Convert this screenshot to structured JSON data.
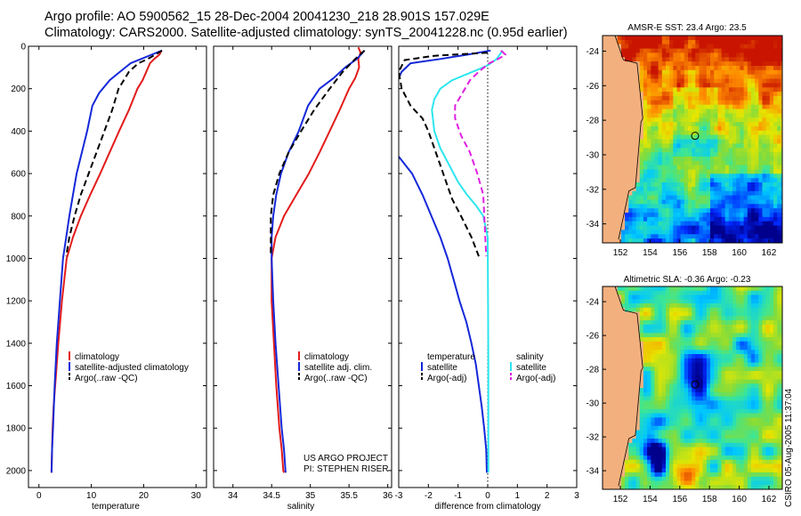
{
  "header": {
    "line1": "Argo profile: AO 5900562_15 28-Dec-2004 20041230_218 28.901S 157.029E",
    "line2": "Climatology: CARS2000. Satellite-adjusted climatology: synTS_20041228.nc (0.95d earlier)"
  },
  "credit": "CSIRO 05-Aug-2005 11:37:04",
  "colors": {
    "red": "#e21b1b",
    "blue": "#1428d8",
    "black": "#000000",
    "cyan": "#2ee6ee",
    "magenta": "#e020e0"
  },
  "chart_data": [
    {
      "type": "line",
      "id": "temperature",
      "xlabel": "temperature",
      "xlim": [
        -2,
        32
      ],
      "xticks": [
        0,
        10,
        20,
        30
      ],
      "ylim": [
        0,
        2080
      ],
      "yticks": [
        0,
        200,
        400,
        600,
        800,
        1000,
        1200,
        1400,
        1600,
        1800,
        2000
      ],
      "legend": [
        "climatology",
        "satellite-adjusted climatology",
        "Argo(..raw -QC)"
      ],
      "series": [
        {
          "name": "climatology",
          "color": "red",
          "style": "solid",
          "x": [
            23.4,
            23.0,
            22.0,
            21.2,
            20.5,
            19.8,
            18.8,
            17.2,
            15.3,
            13.5,
            11.7,
            9.8,
            8.0,
            6.5,
            5.3,
            4.4,
            3.7,
            3.1,
            2.8,
            2.6,
            2.5,
            2.4,
            2.4
          ],
          "y": [
            20,
            40,
            60,
            80,
            120,
            160,
            200,
            300,
            400,
            500,
            600,
            700,
            800,
            900,
            1000,
            1200,
            1400,
            1600,
            1700,
            1800,
            1900,
            2000,
            2010
          ]
        },
        {
          "name": "satellite-adjusted climatology",
          "color": "blue",
          "style": "solid",
          "x": [
            23.5,
            21.5,
            19.5,
            17.5,
            15.5,
            13.5,
            11.5,
            10.2,
            9.2,
            8.2,
            7.2,
            6.5,
            5.8,
            5.2,
            4.6,
            4.0,
            3.4,
            3.0,
            2.7,
            2.5,
            2.4
          ],
          "y": [
            20,
            40,
            60,
            80,
            120,
            160,
            220,
            280,
            400,
            500,
            600,
            700,
            800,
            900,
            1000,
            1200,
            1400,
            1600,
            1800,
            1900,
            2010
          ]
        },
        {
          "name": "Argo(..raw -QC)",
          "color": "black",
          "style": "dash",
          "x": [
            23.5,
            22.2,
            20.8,
            19.0,
            17.2,
            16.2,
            15.2,
            14.0,
            12.5,
            11.0,
            9.5,
            8.0,
            6.8,
            5.8,
            5.2
          ],
          "y": [
            20,
            40,
            60,
            80,
            120,
            160,
            200,
            300,
            400,
            500,
            600,
            700,
            800,
            900,
            990
          ]
        }
      ]
    },
    {
      "type": "line",
      "id": "salinity",
      "xlabel": "salinity",
      "xlim": [
        33.75,
        36.05
      ],
      "xticks": [
        34,
        34.5,
        35,
        35.5,
        36
      ],
      "xticklabels": [
        "34",
        "34.5",
        "35",
        "35.5",
        "36"
      ],
      "ylim": [
        0,
        2080
      ],
      "legend": [
        "climatology",
        "satellite adj. clim.",
        "Argo(..raw -QC)"
      ],
      "annotation": [
        "US ARGO PROJECT",
        "PI: STEPHEN RISER"
      ],
      "series": [
        {
          "name": "climatology",
          "color": "red",
          "style": "solid",
          "x": [
            35.62,
            35.65,
            35.62,
            35.63,
            35.58,
            35.5,
            35.38,
            35.25,
            35.12,
            34.98,
            34.82,
            34.66,
            34.55,
            34.5,
            34.5,
            34.53,
            34.56,
            34.6,
            34.63,
            34.65,
            34.66
          ],
          "y": [
            5,
            30,
            60,
            100,
            150,
            200,
            300,
            400,
            500,
            600,
            700,
            800,
            900,
            1000,
            1200,
            1400,
            1600,
            1800,
            1900,
            2000,
            2010
          ]
        },
        {
          "name": "satellite adj. clim.",
          "color": "blue",
          "style": "solid",
          "x": [
            35.7,
            35.6,
            35.45,
            35.3,
            35.12,
            34.97,
            34.85,
            34.72,
            34.62,
            34.56,
            34.52,
            34.5,
            34.5,
            34.52,
            34.55,
            34.59,
            34.63,
            34.66,
            34.68
          ],
          "y": [
            20,
            60,
            100,
            150,
            200,
            280,
            400,
            500,
            600,
            700,
            800,
            900,
            1000,
            1200,
            1400,
            1600,
            1800,
            1900,
            2010
          ]
        },
        {
          "name": "Argo(..raw -QC)",
          "color": "black",
          "style": "dash",
          "x": [
            35.7,
            35.58,
            35.42,
            35.25,
            35.05,
            34.88,
            34.72,
            34.6,
            34.52,
            34.49,
            34.49
          ],
          "y": [
            20,
            60,
            120,
            200,
            300,
            400,
            500,
            600,
            700,
            800,
            990
          ]
        }
      ]
    },
    {
      "type": "line",
      "id": "difference",
      "xlabel": "difference from climatology",
      "xlim": [
        -3,
        3
      ],
      "xticks": [
        -3,
        -2,
        -1,
        0,
        1,
        2,
        3
      ],
      "ylim": [
        0,
        2080
      ],
      "zero_line": true,
      "legend_left": [
        "temperature",
        "satellite",
        "Argo(-adj)"
      ],
      "legend_right": [
        "salinity",
        "satellite",
        "Argo(-adj)"
      ],
      "series": [
        {
          "name": "temperature satellite",
          "color": "blue",
          "style": "solid",
          "x": [
            0.1,
            -0.7,
            -1.6,
            -2.6,
            -2.9,
            -3.0
          ],
          "y": [
            20,
            40,
            60,
            80,
            120,
            150
          ]
        },
        {
          "name": "temperature satellite deep",
          "color": "blue",
          "style": "solid",
          "x": [
            -3.0,
            -2.55,
            -2.2,
            -1.9,
            -1.6,
            -1.35,
            -1.15,
            -0.95,
            -0.72,
            -0.55,
            -0.4,
            -0.3,
            -0.2,
            -0.12,
            -0.05,
            -0.03
          ],
          "y": [
            520,
            600,
            700,
            800,
            900,
            1000,
            1100,
            1200,
            1300,
            1400,
            1500,
            1600,
            1700,
            1800,
            1900,
            2010
          ]
        },
        {
          "name": "temperature Argo(-adj)",
          "color": "black",
          "style": "dash",
          "x": [
            0.0,
            -1.8,
            -2.3,
            -2.8,
            -3.0,
            -2.9,
            -2.6,
            -2.2,
            -2.0,
            -1.8,
            -1.6,
            -1.4,
            -1.2,
            -0.9,
            -0.55,
            -0.3
          ],
          "y": [
            30,
            45,
            55,
            65,
            120,
            200,
            280,
            340,
            400,
            480,
            560,
            640,
            720,
            800,
            900,
            990
          ]
        },
        {
          "name": "salinity satellite",
          "color": "cyan",
          "style": "solid",
          "x": [
            0.5,
            0.3,
            0.0,
            -0.5,
            -1.2,
            -1.6,
            -1.8,
            -1.88,
            -1.8,
            -1.6,
            -1.3,
            -1.0,
            -0.7,
            -0.4,
            -0.15,
            0.0,
            0.02,
            0.02
          ],
          "y": [
            20,
            60,
            90,
            120,
            160,
            200,
            250,
            300,
            400,
            480,
            560,
            640,
            700,
            750,
            800,
            900,
            1500,
            2010
          ]
        },
        {
          "name": "salinity Argo(-adj)",
          "color": "magenta",
          "style": "dash",
          "x": [
            0.45,
            0.6,
            0.35,
            0.05,
            -0.3,
            -0.6,
            -0.85,
            -1.1,
            -1.1,
            -0.9,
            -0.6,
            -0.35,
            -0.15,
            -0.05
          ],
          "y": [
            20,
            40,
            60,
            80,
            120,
            160,
            220,
            280,
            340,
            420,
            500,
            600,
            700,
            990
          ]
        }
      ]
    }
  ],
  "maps": [
    {
      "id": "sst-map",
      "title": "AMSR-E SST: 23.4 Argo: 23.5",
      "xticks": [
        152,
        154,
        156,
        158,
        160,
        162
      ],
      "yticks": [
        -24,
        -26,
        -28,
        -30,
        -32,
        -34
      ],
      "xlim": [
        150.8,
        162.9
      ],
      "ylim": [
        -35.1,
        -23.1
      ],
      "profile_location": {
        "lon": 157.029,
        "lat": -28.901
      }
    },
    {
      "id": "sla-map",
      "title": "Altimetric SLA: -0.36 Argo: -0.23",
      "xticks": [
        152,
        154,
        156,
        158,
        160,
        162
      ],
      "yticks": [
        -24,
        -26,
        -28,
        -30,
        -32,
        -34
      ],
      "xlim": [
        150.8,
        162.9
      ],
      "ylim": [
        -35.1,
        -23.1
      ],
      "profile_location": {
        "lon": 157.029,
        "lat": -28.901
      }
    }
  ]
}
